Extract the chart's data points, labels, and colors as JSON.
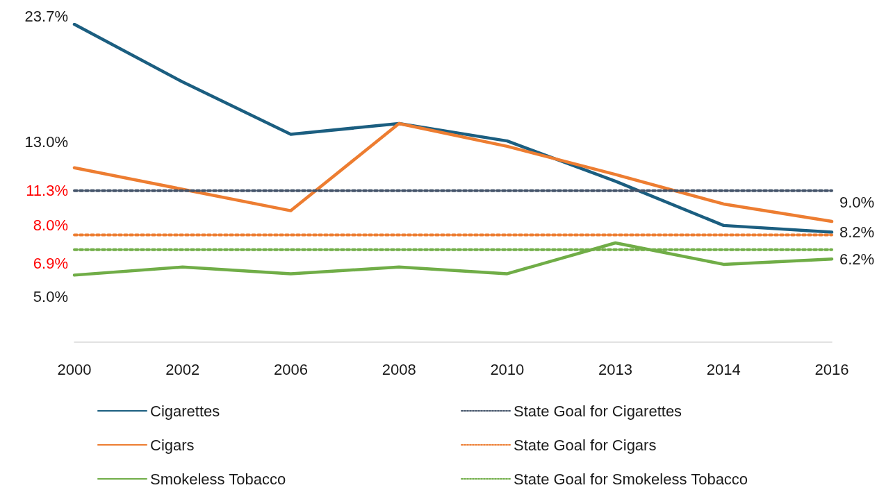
{
  "chart_data": {
    "type": "line",
    "categories": [
      "2000",
      "2002",
      "2006",
      "2008",
      "2010",
      "2013",
      "2014",
      "2016"
    ],
    "tick_labels": "x",
    "legend": "bottom",
    "marker": "none",
    "series": [
      {
        "name": "Cigarettes",
        "color": "#1b5e80",
        "line_style": "solid",
        "values": [
          23.7,
          19.4,
          15.5,
          16.3,
          15.0,
          12.0,
          8.7,
          8.2
        ],
        "value_labels": [
          "23.7%",
          null,
          null,
          null,
          null,
          null,
          null,
          "8.2%"
        ]
      },
      {
        "name": "Cigars",
        "color": "#ed7d31",
        "line_style": "solid",
        "values": [
          13.0,
          11.4,
          9.8,
          16.3,
          14.6,
          12.5,
          10.3,
          9.0
        ],
        "value_labels": [
          "13.0%",
          null,
          null,
          null,
          null,
          null,
          null,
          "9.0%"
        ]
      },
      {
        "name": "Smokeless Tobacco",
        "color": "#70ad47",
        "line_style": "solid",
        "values": [
          5.0,
          5.6,
          5.1,
          5.6,
          5.1,
          7.4,
          5.8,
          6.2
        ],
        "value_labels": [
          "5.0%",
          null,
          null,
          null,
          null,
          null,
          null,
          "6.2%"
        ]
      },
      {
        "name": "State Goal for Cigarettes",
        "color": "#44546a",
        "line_style": "dotted",
        "values": [
          11.3,
          11.3,
          11.3,
          11.3,
          11.3,
          11.3,
          11.3,
          11.3
        ],
        "value_labels": [
          "11.3%",
          null,
          null,
          null,
          null,
          null,
          null,
          null
        ]
      },
      {
        "name": "State Goal for Cigars",
        "color": "#ed7d31",
        "line_style": "dotted",
        "values": [
          8.0,
          8.0,
          8.0,
          8.0,
          8.0,
          8.0,
          8.0,
          8.0
        ],
        "value_labels": [
          "8.0%",
          null,
          null,
          null,
          null,
          null,
          null,
          null
        ]
      },
      {
        "name": "State Goal for Smokeless Tobacco",
        "color": "#70ad47",
        "line_style": "dotted",
        "values": [
          6.9,
          6.9,
          6.9,
          6.9,
          6.9,
          6.9,
          6.9,
          6.9
        ],
        "value_labels": [
          "6.9%",
          null,
          null,
          null,
          null,
          null,
          null,
          null
        ]
      }
    ]
  }
}
